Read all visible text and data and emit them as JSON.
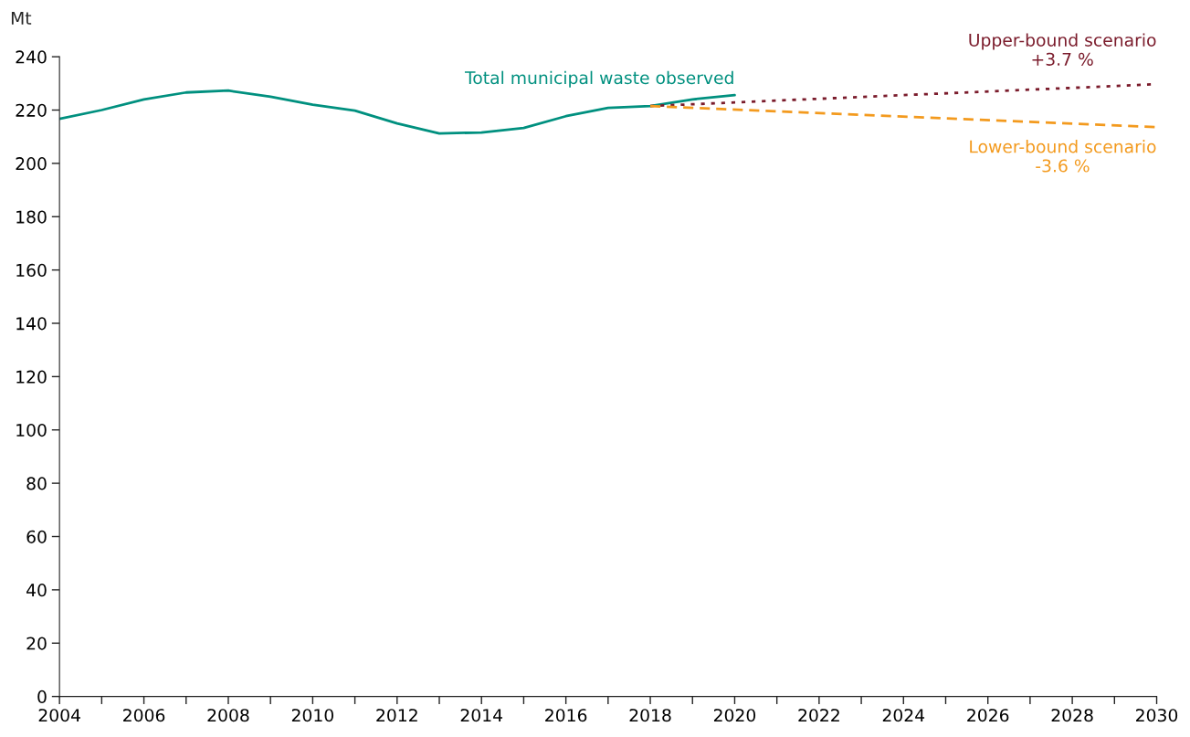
{
  "chart_data": {
    "type": "line",
    "ylabel": "Mt",
    "xlim": [
      2004,
      2030
    ],
    "xticks": [
      2004,
      {
        "value": 2005,
        "label": null
      },
      2006,
      {
        "value": 2007,
        "label": null
      },
      2008,
      {
        "value": 2009,
        "label": null
      },
      2010,
      {
        "value": 2011,
        "label": null
      },
      2012,
      {
        "value": 2013,
        "label": null
      },
      2014,
      {
        "value": 2015,
        "label": null
      },
      2016,
      {
        "value": 2017,
        "label": null
      },
      2018,
      {
        "value": 2019,
        "label": null
      },
      2020,
      {
        "value": 2021,
        "label": null
      },
      2022,
      {
        "value": 2023,
        "label": null
      },
      2024,
      {
        "value": 2025,
        "label": null
      },
      2026,
      {
        "value": 2027,
        "label": null
      },
      2028,
      {
        "value": 2029,
        "label": null
      },
      2030
    ],
    "ylim": [
      0,
      240
    ],
    "yticks": [
      0,
      20,
      40,
      60,
      80,
      100,
      120,
      140,
      160,
      180,
      200,
      220,
      240
    ],
    "grid": false,
    "legend": false,
    "marker": "none",
    "series": [
      {
        "name": "Total municipal waste observed",
        "color": "#00907f",
        "line_style": "solid",
        "x": [
          2004,
          2005,
          2006,
          2007,
          2008,
          2009,
          2010,
          2011,
          2012,
          2013,
          2014,
          2015,
          2016,
          2017,
          2018,
          2019,
          2020
        ],
        "values": [
          216.7,
          220,
          224,
          226.6,
          227.3,
          225,
          222,
          219.8,
          215,
          211.2,
          211.6,
          213.3,
          217.7,
          220.8,
          221.5,
          224,
          225.6
        ]
      },
      {
        "name": "Upper-bound scenario\n+3.7 %",
        "color": "#7b1c2c",
        "line_style": "dotted",
        "x": [
          2018,
          2030
        ],
        "values": [
          221.5,
          229.7
        ]
      },
      {
        "name": "Lower-bound scenario\n-3.6 %",
        "color": "#f39a1e",
        "line_style": "dashed",
        "x": [
          2018,
          2030
        ],
        "values": [
          221.5,
          213.6
        ]
      }
    ]
  }
}
